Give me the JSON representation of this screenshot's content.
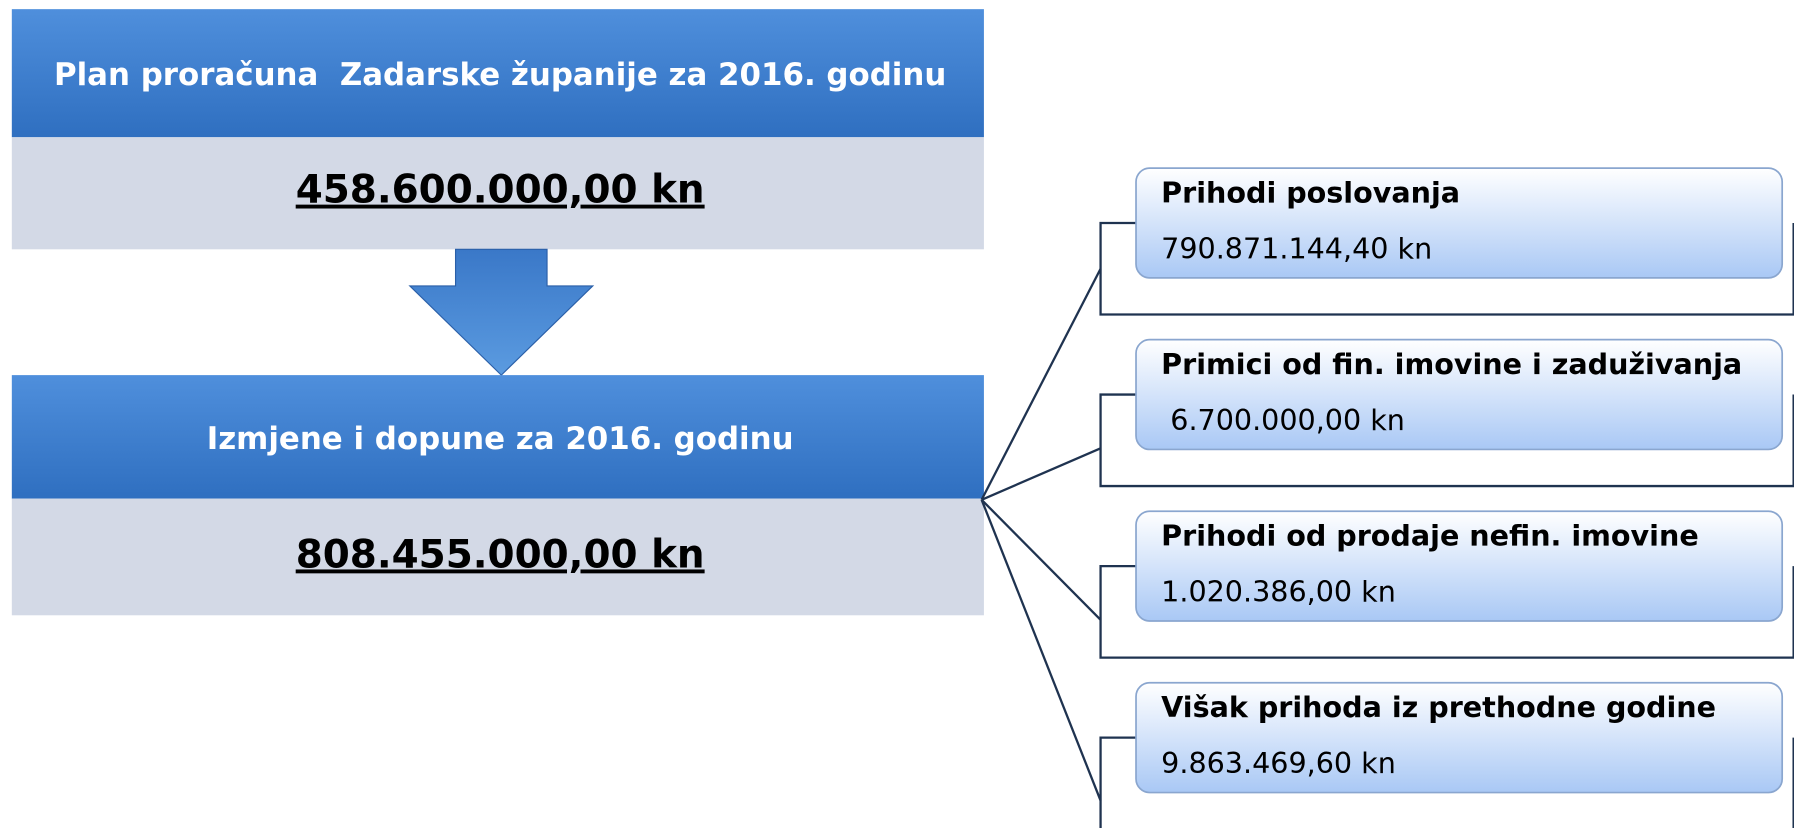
{
  "plan": {
    "title": "Plan proračuna  Zadarske županije za 2016. godinu",
    "amount": "458.600.000,00 kn"
  },
  "revision": {
    "title": "Izmjene i dopune za 2016. godinu",
    "amount": "808.455.000,00 kn"
  },
  "items": [
    {
      "label": "Prihodi poslovanja",
      "value": "790.871.144,40 kn"
    },
    {
      "label": "Primici od fin. imovine i zaduživanja",
      "value": " 6.700.000,00 kn"
    },
    {
      "label": "Prihodi od prodaje nefin. imovine",
      "value": "1.020.386,00 kn"
    },
    {
      "label": "Višak prihoda iz prethodne godine",
      "value": "9.863.469,60 kn"
    }
  ]
}
